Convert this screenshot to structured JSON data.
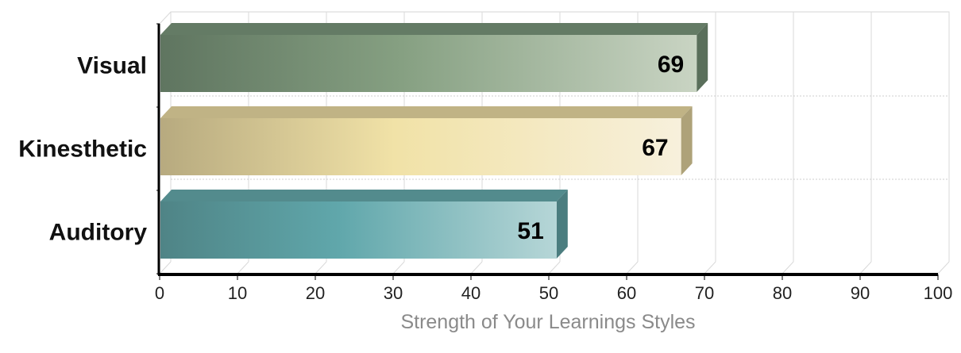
{
  "chart_data": {
    "type": "bar",
    "orientation": "horizontal",
    "categories": [
      "Visual",
      "Kinesthetic",
      "Auditory"
    ],
    "values": [
      69,
      67,
      51
    ],
    "value_labels": [
      "69",
      "67",
      "51"
    ],
    "title": "",
    "xlabel": "Strength of Your Learnings Styles",
    "ylabel": "",
    "xlim": [
      0,
      100
    ],
    "xticks": [
      0,
      10,
      20,
      30,
      40,
      50,
      60,
      70,
      80,
      90,
      100
    ],
    "xtick_labels": [
      "0",
      "10",
      "20",
      "30",
      "40",
      "50",
      "60",
      "70",
      "80",
      "90",
      "100"
    ],
    "grid": true,
    "legend": "none",
    "style": "3d-gradient",
    "colors": [
      {
        "dark": "#5f7560",
        "mid": "#86a082",
        "light": "#c9d4c3"
      },
      {
        "dark": "#b7aa7f",
        "mid": "#f1e2a7",
        "light": "#f7f0dc"
      },
      {
        "dark": "#4f8486",
        "mid": "#60a7ab",
        "light": "#b6d6d7"
      }
    ]
  }
}
